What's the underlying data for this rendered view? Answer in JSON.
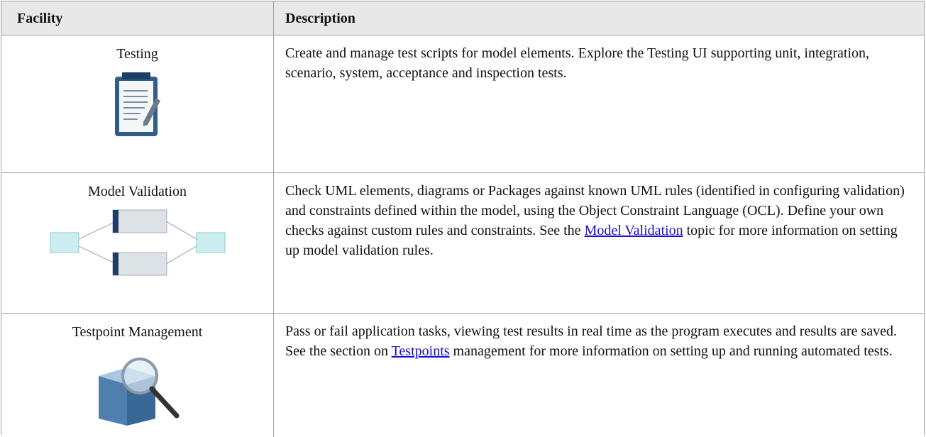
{
  "table": {
    "header": [
      "Facility",
      "Description"
    ],
    "rows": [
      {
        "facility": "Testing",
        "description": [
          "Create and manage test scripts for model elements. Explore the Testing UI supporting unit, integration, scenario, system, acceptance and inspection tests."
        ]
      },
      {
        "facility": "Model Validation",
        "description": [
          "Check UML elements, diagrams or Packages against known UML rules (identified in configuring validation) and constraints defined within the model, using the Object Constraint Language (OCL). Define your own checks against custom rules and constraints. See the ",
          "Model Validation",
          " topic for more information on setting up model validation rules."
        ]
      },
      {
        "facility": "Testpoint Management",
        "description": [
          "Pass or fail application tasks, viewing test results in real time as the program executes and results are saved. See the section on ",
          "Testpoints",
          " management for more information on setting up and running automated tests."
        ]
      }
    ]
  }
}
